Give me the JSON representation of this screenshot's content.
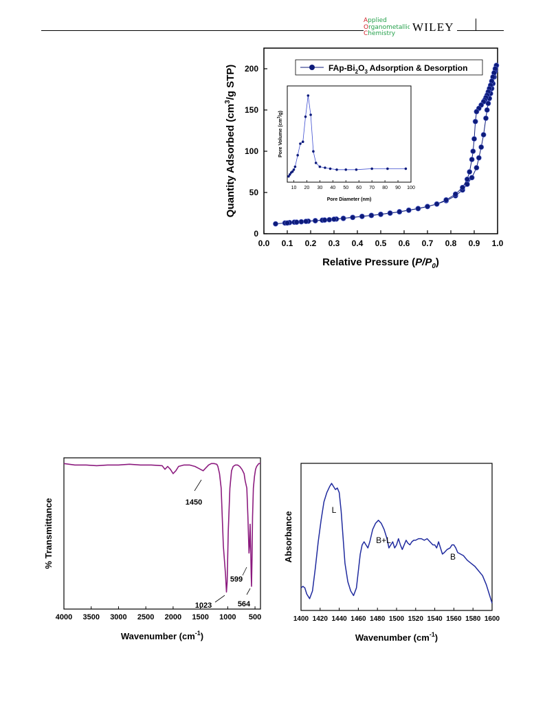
{
  "header": {
    "journal_lines": [
      {
        "cap": "A",
        "rest": "pplied"
      },
      {
        "cap": "O",
        "rest": "rganometallic"
      },
      {
        "cap": "C",
        "rest": "hemistry"
      }
    ],
    "publisher": "WILEY"
  },
  "chart_data": [
    {
      "type": "line",
      "subtype": "isotherm",
      "legend": "FAp-Bi2O3 Adsorption & Desorption",
      "legend_parts": {
        "a": "FAp-Bi",
        "b": "2",
        "c": "O",
        "d": "3",
        "e": " Adsorption & Desorption"
      },
      "xlabel": "Relative Pressure (P/P0)",
      "xlabel_parts": {
        "a": "Relative Pressure (",
        "b": "P/P",
        "c": "0",
        "d": ")"
      },
      "ylabel": "Quantity Adsorbed (cm3/g STP)",
      "ylabel_parts": {
        "a": "Quantity Adsorbed (cm",
        "b": "3",
        "c": "/g STP)"
      },
      "xlim": [
        0.0,
        1.0
      ],
      "ylim": [
        0,
        225
      ],
      "xticks": [
        0.0,
        0.1,
        0.2,
        0.3,
        0.4,
        0.5,
        0.6,
        0.7,
        0.8,
        0.9,
        1.0
      ],
      "xtick_labels": [
        "0.0",
        "0.1",
        "0.2",
        "0.3",
        "0.4",
        "0.5",
        "0.6",
        "0.7",
        "0.8",
        "0.9",
        "1.0"
      ],
      "yticks": [
        0,
        50,
        100,
        150,
        200
      ],
      "ytick_labels": [
        "0",
        "50",
        "100",
        "150",
        "200"
      ],
      "color": "#0d1b7a",
      "series": [
        {
          "name": "adsorption",
          "x": [
            0.05,
            0.09,
            0.11,
            0.13,
            0.16,
            0.19,
            0.22,
            0.25,
            0.28,
            0.31,
            0.34,
            0.38,
            0.42,
            0.46,
            0.5,
            0.54,
            0.58,
            0.62,
            0.66,
            0.7,
            0.74,
            0.78,
            0.82,
            0.85,
            0.87,
            0.89,
            0.91,
            0.92,
            0.93,
            0.94,
            0.95,
            0.955,
            0.96,
            0.965,
            0.97,
            0.975,
            0.98,
            0.985,
            0.99,
            0.995
          ],
          "y": [
            12,
            13,
            13.5,
            14,
            14.5,
            15.2,
            15.8,
            16.4,
            17,
            17.8,
            18.6,
            19.8,
            21,
            22.2,
            23.5,
            25,
            26.6,
            28.5,
            30.5,
            33,
            36,
            40,
            46,
            53,
            60,
            68,
            80,
            92,
            105,
            120,
            140,
            150,
            158,
            164,
            170,
            176,
            182,
            190,
            197,
            204
          ]
        },
        {
          "name": "desorption",
          "x": [
            0.995,
            0.99,
            0.985,
            0.98,
            0.975,
            0.97,
            0.965,
            0.96,
            0.955,
            0.95,
            0.945,
            0.94,
            0.93,
            0.92,
            0.91,
            0.905,
            0.9,
            0.895,
            0.89,
            0.88,
            0.87,
            0.85,
            0.82,
            0.78,
            0.74,
            0.7,
            0.66,
            0.62,
            0.58,
            0.54,
            0.5,
            0.46,
            0.42,
            0.38,
            0.34,
            0.3,
            0.26,
            0.22,
            0.18,
            0.14,
            0.1
          ],
          "y": [
            204,
            200,
            195,
            190,
            185,
            180,
            176,
            172,
            168,
            165,
            162,
            160,
            156,
            152,
            148,
            136,
            115,
            100,
            90,
            75,
            66,
            56,
            48,
            41,
            36,
            33,
            30.5,
            28.5,
            26.6,
            25,
            23.5,
            22.2,
            21,
            19.8,
            18.6,
            17.6,
            16.6,
            15.8,
            15,
            14,
            13
          ]
        }
      ]
    },
    {
      "type": "line",
      "subtype": "inset",
      "xlabel": "Pore Diameter (nm)",
      "ylabel": "Pore Volume (cm3/g)",
      "ylabel_parts": {
        "a": "Pore Volume (cm",
        "b": "3",
        "c": "/g)"
      },
      "xlim": [
        5,
        100
      ],
      "ylim": [
        0,
        1
      ],
      "xticks": [
        10,
        20,
        30,
        40,
        50,
        60,
        70,
        80,
        90,
        100
      ],
      "xtick_labels": [
        "10",
        "20",
        "30",
        "40",
        "50",
        "60",
        "70",
        "80",
        "90",
        "100"
      ],
      "color": "#0d1b7a",
      "series": [
        {
          "name": "pore distribution",
          "x": [
            6,
            7,
            8,
            9,
            10,
            11,
            13,
            15,
            17,
            19,
            21,
            23,
            25,
            27,
            30,
            34,
            38,
            43,
            50,
            58,
            70,
            82,
            96
          ],
          "y": [
            0.06,
            0.08,
            0.1,
            0.11,
            0.13,
            0.16,
            0.28,
            0.4,
            0.42,
            0.68,
            0.9,
            0.7,
            0.32,
            0.2,
            0.16,
            0.15,
            0.14,
            0.13,
            0.13,
            0.13,
            0.14,
            0.14,
            0.14
          ]
        }
      ]
    },
    {
      "type": "line",
      "subtype": "ftir",
      "xlabel": "Wavenumber (cm-1)",
      "xlabel_parts": {
        "a": "Wavenumber (cm",
        "b": "-1",
        "c": ")"
      },
      "ylabel": "% Transmittance",
      "xlim": [
        4000,
        400
      ],
      "xticks": [
        4000,
        3500,
        3000,
        2500,
        2000,
        1500,
        1000,
        500
      ],
      "xtick_labels": [
        "4000",
        "3500",
        "3000",
        "2500",
        "2000",
        "1500",
        "1000",
        "500"
      ],
      "color": "#8b1a7e",
      "annotations": [
        "1450",
        "1023",
        "599",
        "564"
      ],
      "series": [
        {
          "name": "FT-IR",
          "x": [
            4000,
            3800,
            3600,
            3400,
            3200,
            3000,
            2800,
            2600,
            2400,
            2200,
            2150,
            2100,
            2050,
            2000,
            1950,
            1900,
            1800,
            1700,
            1600,
            1550,
            1500,
            1450,
            1400,
            1350,
            1300,
            1250,
            1200,
            1180,
            1150,
            1120,
            1100,
            1080,
            1060,
            1040,
            1023,
            1010,
            990,
            960,
            930,
            900,
            860,
            820,
            780,
            740,
            700,
            680,
            650,
            630,
            610,
            599,
            590,
            580,
            570,
            564,
            555,
            545,
            530,
            510,
            490,
            470,
            450,
            430,
            400
          ],
          "y": [
            97,
            96,
            96,
            95.5,
            96,
            96,
            96.5,
            96,
            96,
            95.5,
            93,
            95,
            93,
            90,
            92,
            95,
            96,
            96,
            95,
            94,
            93,
            92,
            94,
            96,
            97,
            97,
            96.5,
            95,
            90,
            80,
            60,
            40,
            30,
            20,
            8,
            15,
            50,
            80,
            92,
            95,
            96,
            96,
            95,
            93,
            90,
            85,
            80,
            60,
            35,
            40,
            55,
            40,
            20,
            12,
            30,
            60,
            80,
            88,
            93,
            95,
            96,
            97,
            97
          ]
        }
      ]
    },
    {
      "type": "line",
      "subtype": "ftir-pyridine",
      "xlabel": "Wavenumber (cm-1)",
      "xlabel_parts": {
        "a": "Wavenumber (cm",
        "b": "-1",
        "c": ")"
      },
      "ylabel": "Absorbance",
      "xlim": [
        1400,
        1600
      ],
      "xticks": [
        1400,
        1420,
        1440,
        1460,
        1480,
        1500,
        1520,
        1540,
        1560,
        1580,
        1600
      ],
      "xtick_labels": [
        "1400",
        "1420",
        "1440",
        "1460",
        "1480",
        "1500",
        "1520",
        "1540",
        "1560",
        "1580",
        "1600"
      ],
      "color": "#1f2a9e",
      "annotations": [
        "L",
        "B+L",
        "B"
      ],
      "series": [
        {
          "name": "pyridine FT-IR",
          "x": [
            1400,
            1402,
            1404,
            1406,
            1409,
            1412,
            1415,
            1418,
            1421,
            1424,
            1427,
            1430,
            1432,
            1434,
            1436,
            1438,
            1440,
            1442,
            1444,
            1446,
            1449,
            1452,
            1455,
            1458,
            1460,
            1462,
            1464,
            1466,
            1468,
            1470,
            1472,
            1475,
            1478,
            1481,
            1484,
            1487,
            1490,
            1492,
            1494,
            1496,
            1498,
            1500,
            1502,
            1504,
            1506,
            1508,
            1510,
            1512,
            1514,
            1516,
            1518,
            1520,
            1523,
            1526,
            1529,
            1532,
            1535,
            1538,
            1540,
            1542,
            1544,
            1546,
            1548,
            1550,
            1553,
            1556,
            1558,
            1560,
            1562,
            1564,
            1567,
            1570,
            1574,
            1578,
            1582,
            1586,
            1590,
            1594,
            1597,
            1600
          ],
          "y": [
            0.22,
            0.23,
            0.22,
            0.18,
            0.15,
            0.2,
            0.35,
            0.52,
            0.66,
            0.78,
            0.84,
            0.88,
            0.9,
            0.88,
            0.86,
            0.87,
            0.84,
            0.72,
            0.55,
            0.38,
            0.26,
            0.2,
            0.17,
            0.22,
            0.33,
            0.44,
            0.5,
            0.52,
            0.5,
            0.48,
            0.52,
            0.6,
            0.64,
            0.66,
            0.64,
            0.6,
            0.54,
            0.48,
            0.5,
            0.52,
            0.48,
            0.5,
            0.54,
            0.5,
            0.47,
            0.5,
            0.53,
            0.51,
            0.5,
            0.52,
            0.53,
            0.53,
            0.54,
            0.54,
            0.53,
            0.54,
            0.52,
            0.5,
            0.5,
            0.48,
            0.52,
            0.48,
            0.44,
            0.45,
            0.47,
            0.48,
            0.5,
            0.5,
            0.48,
            0.45,
            0.44,
            0.43,
            0.4,
            0.38,
            0.36,
            0.33,
            0.3,
            0.24,
            0.18,
            0.12
          ]
        }
      ]
    }
  ]
}
